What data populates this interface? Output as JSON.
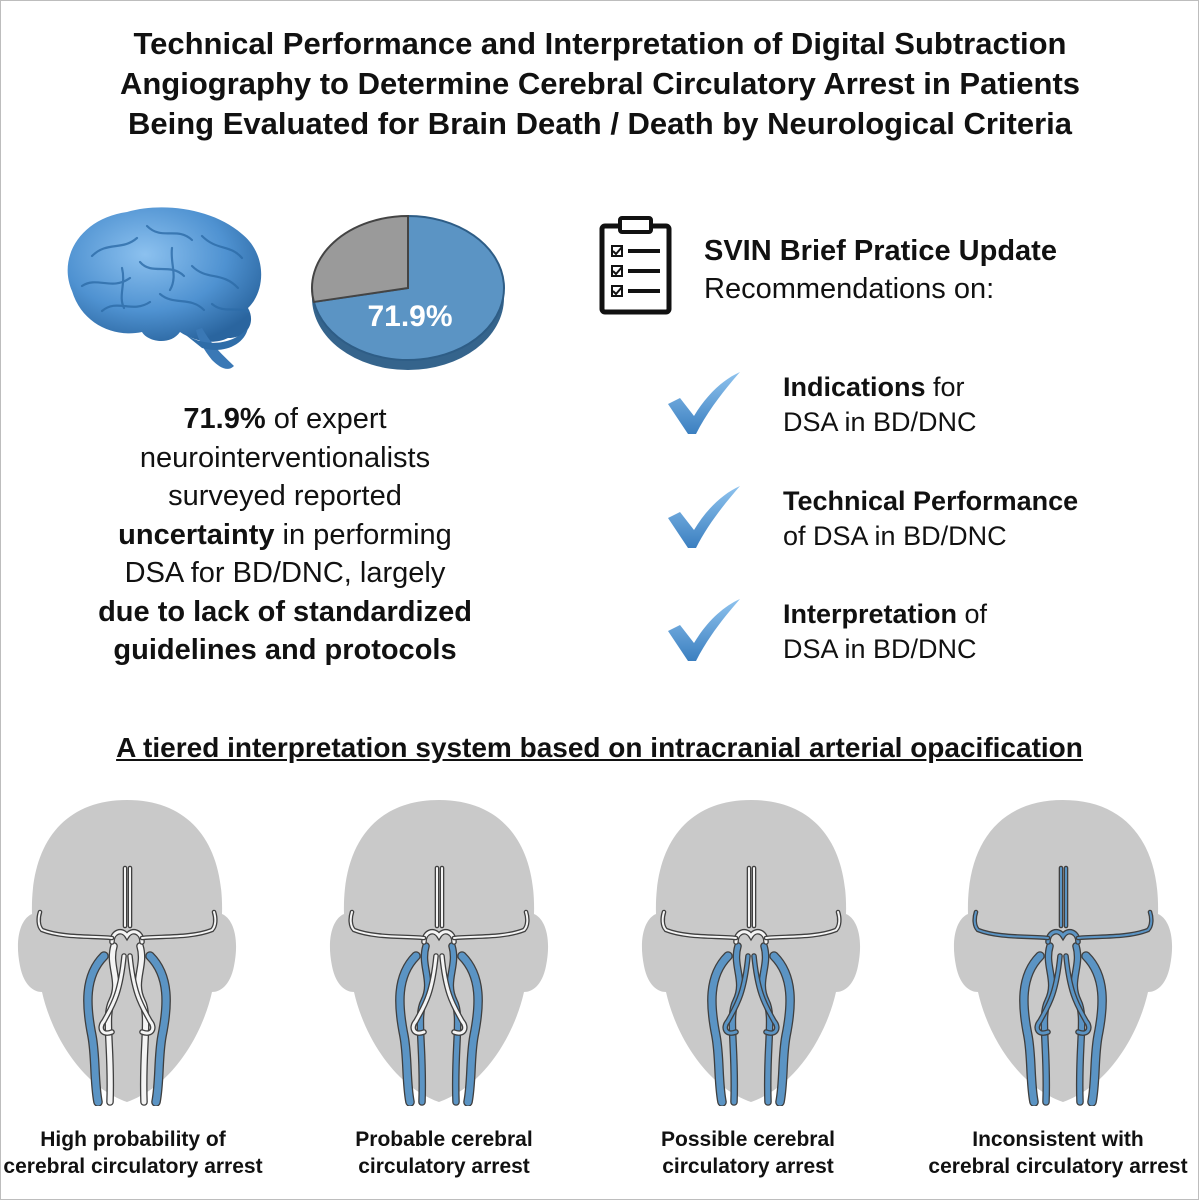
{
  "title": {
    "line1": "Technical Performance and Interpretation of Digital Subtraction",
    "line2": "Angiography to Determine Cerebral Circulatory Arrest in Patients",
    "line3": "Being Evaluated for Brain Death / Death by Neurological Criteria"
  },
  "pie": {
    "label": "71.9%",
    "value": 71.9,
    "colors": {
      "main": "#5b94c4",
      "rest": "#9a9a9a"
    }
  },
  "stat": {
    "l1_bold": "71.9%",
    "l1_rest": " of expert",
    "l2": "neurointerventionalists",
    "l3": "surveyed reported",
    "l4_bold": "uncertainty",
    "l4_rest": " in performing",
    "l5": "DSA for BD/DNC, largely",
    "l6_bold": "due to lack of standardized",
    "l7_bold": "guidelines and protocols"
  },
  "svin": {
    "heading": "SVIN Brief Pratice Update",
    "subheading": "Recommendations on:"
  },
  "recommendations": [
    {
      "bold": "Indications",
      "rest": " for",
      "line2": "DSA in BD/DNC"
    },
    {
      "bold": "Technical Performance",
      "rest": "",
      "line2": "of DSA in BD/DNC"
    },
    {
      "bold": "Interpretation",
      "rest": " of",
      "line2": "DSA in BD/DNC"
    }
  ],
  "tier_title": "A tiered interpretation system based on intracranial arterial opacification",
  "tiers": [
    {
      "line1": "High probability of",
      "line2": "cerebral circulatory arrest"
    },
    {
      "line1": "Probable cerebral",
      "line2": "circulatory arrest"
    },
    {
      "line1": "Possible cerebral",
      "line2": "circulatory arrest"
    },
    {
      "line1": "Inconsistent with",
      "line2": "cerebral circulatory arrest"
    }
  ],
  "colors": {
    "vessel_blue": "#5b94c4",
    "head_gray": "#c9c9c9",
    "check_blue": "#4e8fc7"
  },
  "icons": {
    "brain": "brain-icon",
    "clipboard": "clipboard-checklist-icon",
    "check": "checkmark-icon"
  }
}
